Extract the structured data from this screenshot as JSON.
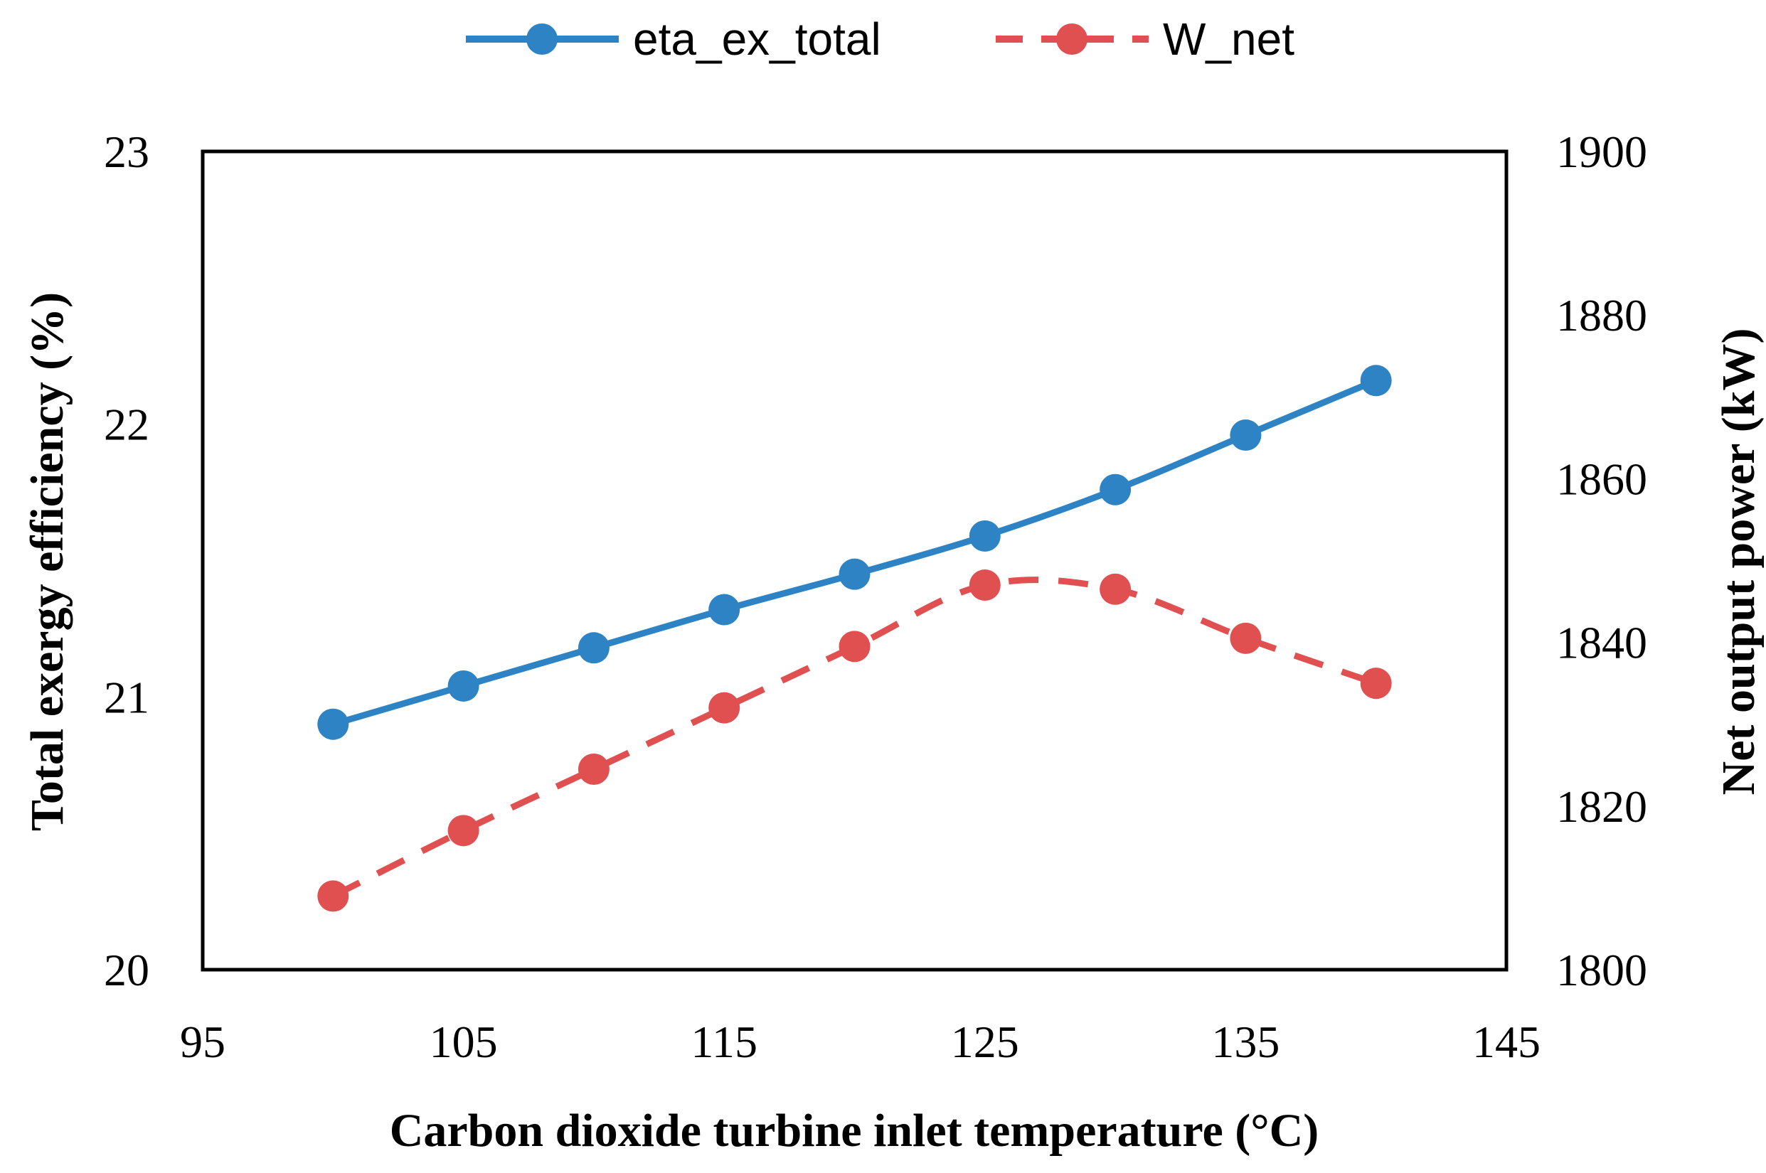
{
  "chart_data": {
    "type": "line",
    "title": "",
    "xlabel": "Carbon dioxide turbine inlet temperature (°C)",
    "ylabel": "Total exergy efficiency (%)",
    "y2label": "Net output power (kW)",
    "xlim": [
      95,
      145
    ],
    "ylim": [
      20,
      23
    ],
    "y2lim": [
      1800,
      1900
    ],
    "x_ticks": [
      "95",
      "105",
      "115",
      "125",
      "135",
      "145"
    ],
    "y_ticks": [
      "20",
      "21",
      "22",
      "23"
    ],
    "y2_ticks": [
      "1800",
      "1820",
      "1840",
      "1860",
      "1880",
      "1900"
    ],
    "legend_position": "top-center",
    "grid": false,
    "x": [
      100,
      105,
      110,
      115,
      120,
      125,
      130,
      135,
      140
    ],
    "series": [
      {
        "name": "eta_ex_total",
        "axis": "left",
        "color": "#2e83c4",
        "style": "solid",
        "values": [
          20.9,
          21.04,
          21.18,
          21.32,
          21.45,
          21.59,
          21.76,
          21.96,
          22.16
        ]
      },
      {
        "name": "W_net",
        "axis": "right",
        "color": "#e15050",
        "style": "dashed",
        "values": [
          1809,
          1817,
          1824.5,
          1832,
          1839.5,
          1847,
          1846.5,
          1840.5,
          1835
        ]
      }
    ]
  }
}
